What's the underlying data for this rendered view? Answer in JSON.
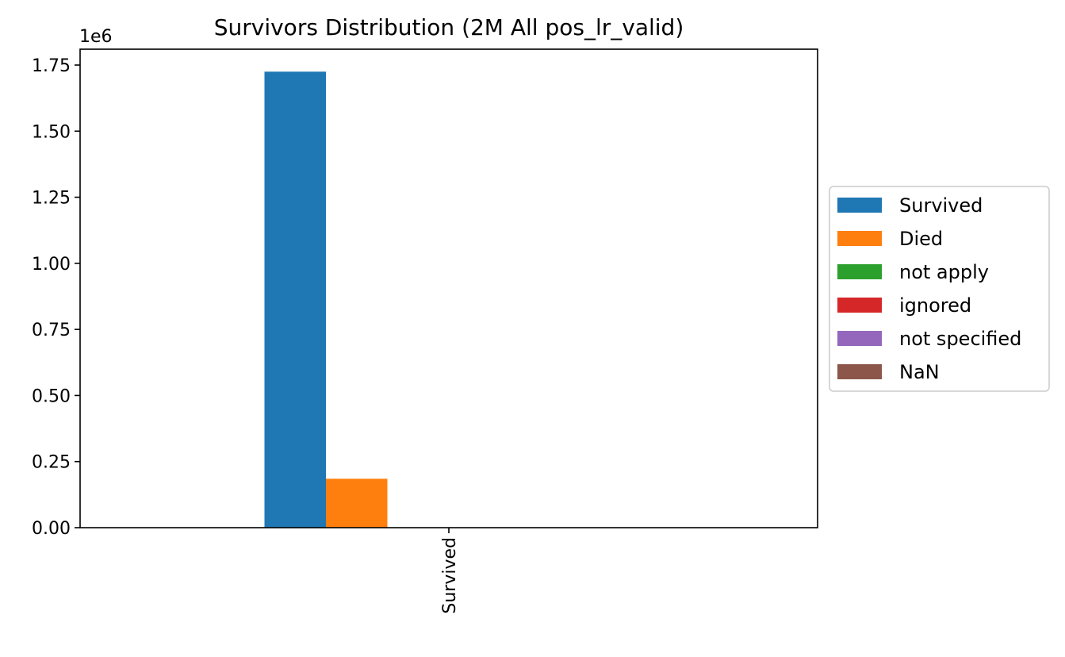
{
  "chart_data": {
    "type": "bar",
    "title": "Survivors Distribution (2M All pos_lr_valid)",
    "xlabel": "",
    "ylabel": "",
    "categories": [
      "Survived"
    ],
    "series": [
      {
        "name": "Survived",
        "values": [
          1725000
        ],
        "color": "#1f77b4"
      },
      {
        "name": "Died",
        "values": [
          185000
        ],
        "color": "#ff7f0e"
      },
      {
        "name": "not apply",
        "values": [
          0
        ],
        "color": "#2ca02c"
      },
      {
        "name": "ignored",
        "values": [
          0
        ],
        "color": "#d62728"
      },
      {
        "name": "not specified",
        "values": [
          0
        ],
        "color": "#9467bd"
      },
      {
        "name": "NaN",
        "values": [
          0
        ],
        "color": "#8c564b"
      }
    ],
    "ylim": [
      0,
      1810000
    ],
    "y_ticks": [
      0,
      250000,
      500000,
      750000,
      1000000,
      1250000,
      1500000,
      1750000
    ],
    "y_tick_labels": [
      "0.00",
      "0.25",
      "0.50",
      "0.75",
      "1.00",
      "1.25",
      "1.50",
      "1.75"
    ],
    "y_offset_label": "1e6",
    "legend_position": "outside-right",
    "grid": false
  }
}
